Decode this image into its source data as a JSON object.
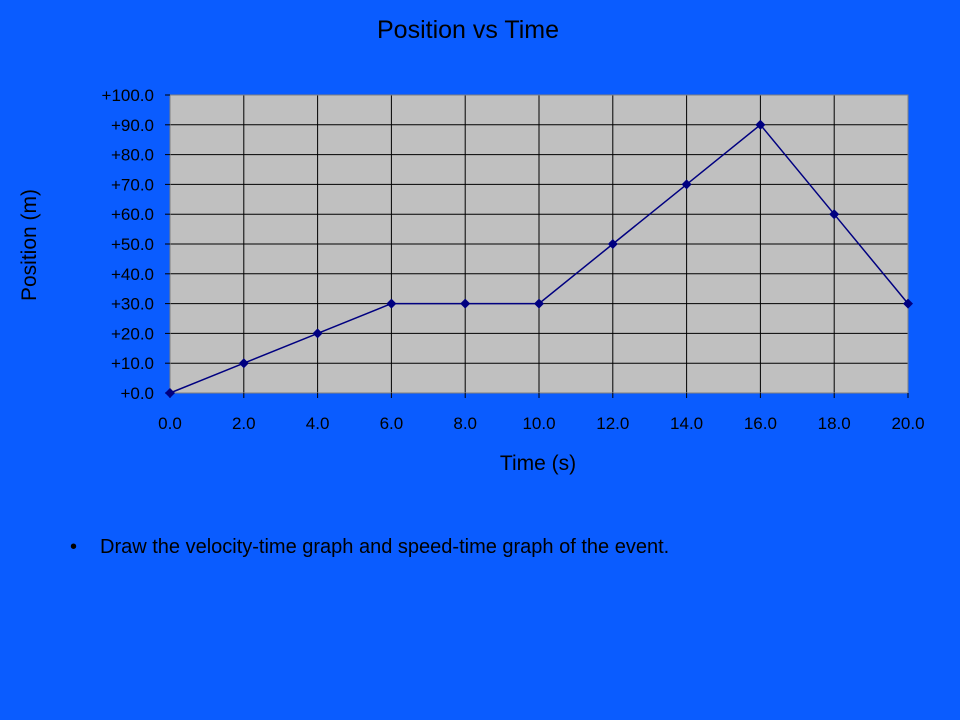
{
  "slide": {
    "bullets": [
      "Draw the velocity-time graph and speed-time graph of the event."
    ]
  },
  "colors": {
    "slide_background": "#0a5cff",
    "plot_area": "#c0c0c0",
    "series": "#000080",
    "gridlines": "#000000"
  },
  "chart_data": {
    "type": "line",
    "title": "Position vs Time",
    "xlabel": "Time (s)",
    "ylabel": "Position (m)",
    "xlim": [
      0,
      20
    ],
    "ylim": [
      0,
      100
    ],
    "x_ticks": [
      "0.0",
      "2.0",
      "4.0",
      "6.0",
      "8.0",
      "10.0",
      "12.0",
      "14.0",
      "16.0",
      "18.0",
      "20.0"
    ],
    "y_ticks": [
      "+0.0",
      "+10.0",
      "+20.0",
      "+30.0",
      "+40.0",
      "+50.0",
      "+60.0",
      "+70.0",
      "+80.0",
      "+90.0",
      "+100.0"
    ],
    "grid": true,
    "marker": "diamond",
    "x": [
      0,
      2,
      4,
      6,
      8,
      10,
      12,
      14,
      16,
      18,
      20
    ],
    "series": [
      {
        "values": [
          0,
          10,
          20,
          30,
          30,
          30,
          50,
          70,
          90,
          60,
          30
        ]
      }
    ]
  }
}
